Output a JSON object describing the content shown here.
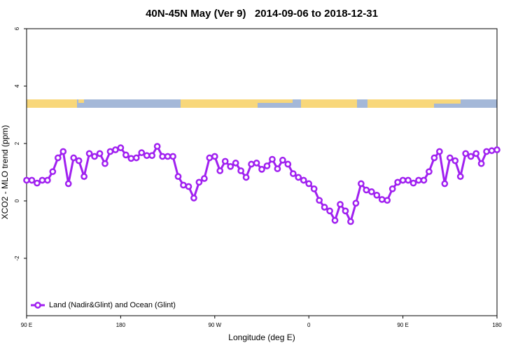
{
  "chart_data": {
    "type": "line",
    "title": "40N-45N May (Ver 9)   2014-09-06 to 2018-12-31",
    "x_label": "Longitude (deg E)",
    "y_label": "XCO2 - MLO trend (ppm)",
    "x": [
      90,
      95,
      100,
      105,
      110,
      115,
      120,
      125,
      130,
      135,
      140,
      145,
      150,
      155,
      160,
      165,
      170,
      175,
      180,
      185,
      190,
      195,
      200,
      205,
      210,
      215,
      220,
      225,
      230,
      235,
      240,
      245,
      250,
      255,
      260,
      265,
      270,
      275,
      280,
      285,
      290,
      295,
      300,
      305,
      310,
      315,
      320,
      325,
      330,
      335,
      340,
      345,
      350,
      355,
      360,
      365,
      370,
      375,
      380,
      385,
      390,
      395,
      400,
      405,
      410,
      415,
      420,
      425,
      430,
      435,
      440,
      445,
      450,
      455,
      460,
      465,
      470,
      475,
      480,
      485,
      490,
      495,
      500,
      505,
      510,
      515,
      520,
      525,
      530,
      535,
      540
    ],
    "series": [
      {
        "name": "Land (Nadir&Glint) and Ocean (Glint)",
        "color": "#a020f0",
        "values": [
          0.72,
          0.72,
          0.62,
          0.72,
          0.72,
          1.02,
          1.5,
          1.72,
          0.6,
          1.5,
          1.4,
          0.85,
          1.65,
          1.55,
          1.65,
          1.3,
          1.72,
          1.78,
          1.85,
          1.6,
          1.48,
          1.5,
          1.68,
          1.58,
          1.58,
          1.9,
          1.55,
          1.55,
          1.55,
          0.85,
          0.55,
          0.5,
          0.1,
          0.65,
          0.78,
          1.5,
          1.55,
          1.05,
          1.38,
          1.2,
          1.32,
          1.05,
          0.82,
          1.28,
          1.32,
          1.1,
          1.22,
          1.45,
          1.12,
          1.42,
          1.28,
          0.95,
          0.82,
          0.72,
          0.6,
          0.42,
          0.02,
          -0.22,
          -0.35,
          -0.68,
          -0.12,
          -0.35,
          -0.72,
          -0.08,
          0.6,
          0.38,
          0.32,
          0.2,
          0.05,
          0.02,
          0.42,
          0.65,
          0.72,
          0.72,
          0.62,
          0.72,
          0.72,
          1.02,
          1.5,
          1.72,
          0.6,
          1.5,
          1.4,
          0.85,
          1.65,
          1.55,
          1.65,
          1.3,
          1.72,
          1.75,
          1.78
        ]
      }
    ],
    "xlim": [
      90,
      540
    ],
    "xticks": [
      {
        "value": 90,
        "label": "90 E"
      },
      180,
      {
        "value": 270,
        "label": "90 W"
      },
      {
        "value": 360,
        "label": "0"
      },
      {
        "value": 450,
        "label": "90 E"
      },
      {
        "value": 540,
        "label": "180"
      }
    ],
    "ylim": [
      -4,
      6
    ],
    "yticks": [
      -2,
      0,
      2,
      4,
      6
    ],
    "legend": "bottom-left"
  }
}
